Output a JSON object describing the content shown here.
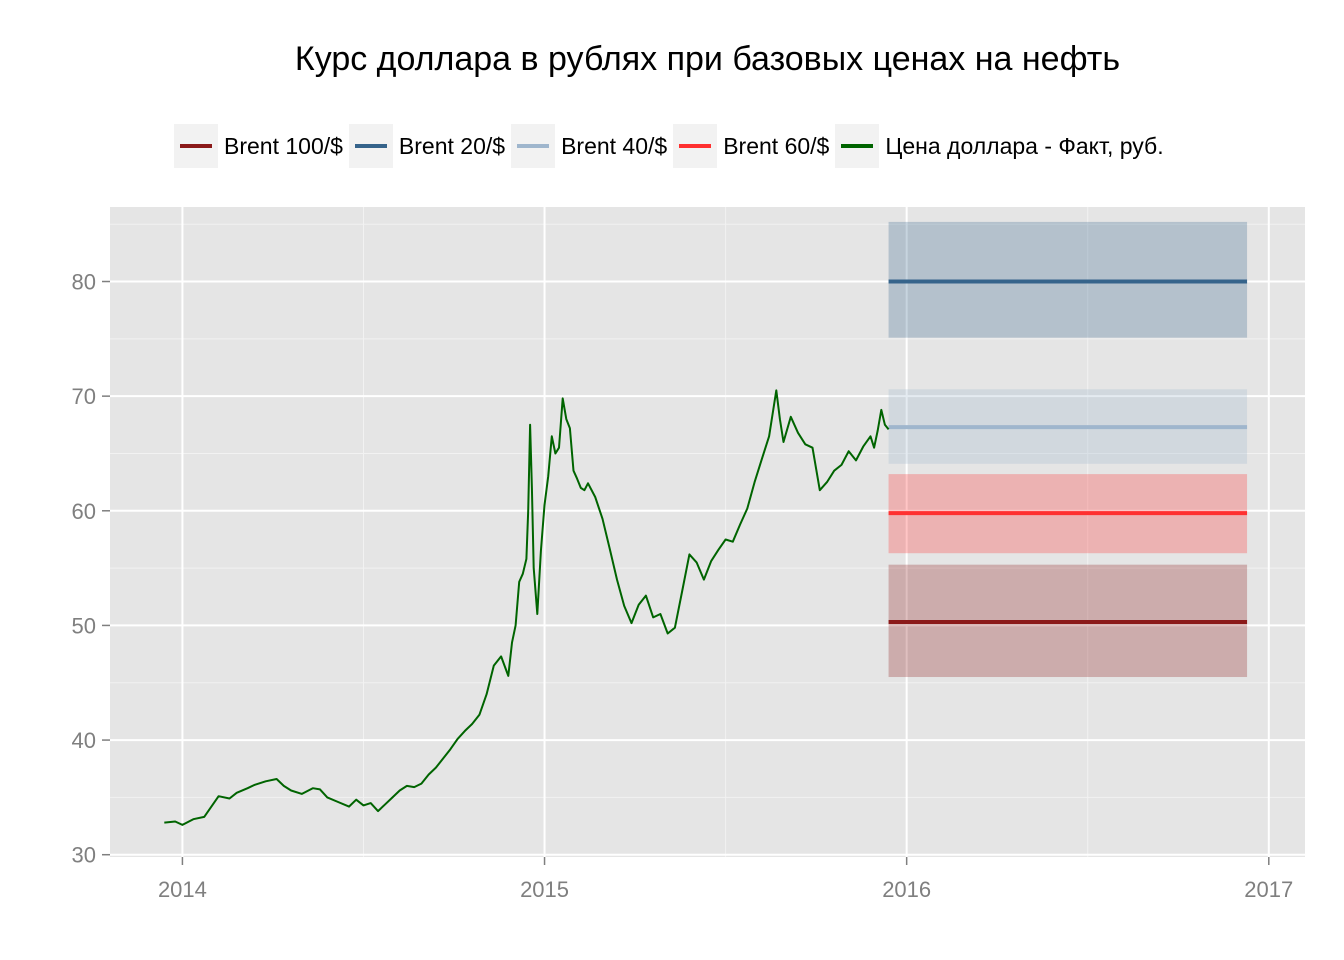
{
  "chart_data": {
    "type": "line",
    "title": "Курс доллара в рублях при базовых ценах на нефть",
    "xlabel": "",
    "ylabel": "",
    "xlim": [
      2013.8,
      2017.1
    ],
    "ylim": [
      29.8,
      86.5
    ],
    "x_ticks": [
      2014,
      2015,
      2016,
      2017
    ],
    "y_ticks": [
      30,
      40,
      50,
      60,
      70,
      80
    ],
    "grid": true,
    "legend_position": "top",
    "colors": {
      "panel_background": "#e5e5e5",
      "grid_major": "#ffffff",
      "grid_minor": "#f2f2f2",
      "tick_text": "#7f7f7f"
    },
    "series": [
      {
        "name": "Brent 100/$",
        "color": "#8b1a1a",
        "band_opacity": 0.28,
        "x": [
          2015.95,
          2016.94
        ],
        "y": [
          50.3,
          50.3
        ],
        "lower": 45.5,
        "upper": 55.3
      },
      {
        "name": "Brent 20/$",
        "color": "#36648b",
        "band_opacity": 0.28,
        "x": [
          2015.95,
          2016.94
        ],
        "y": [
          80.0,
          80.0
        ],
        "lower": 75.1,
        "upper": 85.2
      },
      {
        "name": "Brent 40/$",
        "color": "#9fb6cd",
        "band_opacity": 0.28,
        "x": [
          2015.95,
          2016.94
        ],
        "y": [
          67.3,
          67.3
        ],
        "lower": 64.1,
        "upper": 70.6
      },
      {
        "name": "Brent 60/$",
        "color": "#ff3030",
        "band_opacity": 0.28,
        "x": [
          2015.95,
          2016.94
        ],
        "y": [
          59.8,
          59.8
        ],
        "lower": 56.3,
        "upper": 63.2
      },
      {
        "name": "Цена доллара - Факт, руб.",
        "color": "#006400",
        "x": [
          2013.95,
          2013.98,
          2014.0,
          2014.03,
          2014.06,
          2014.08,
          2014.1,
          2014.13,
          2014.15,
          2014.18,
          2014.2,
          2014.23,
          2014.26,
          2014.28,
          2014.3,
          2014.33,
          2014.36,
          2014.38,
          2014.4,
          2014.43,
          2014.46,
          2014.48,
          2014.5,
          2014.52,
          2014.54,
          2014.56,
          2014.58,
          2014.6,
          2014.62,
          2014.64,
          2014.66,
          2014.68,
          2014.7,
          2014.72,
          2014.74,
          2014.76,
          2014.78,
          2014.8,
          2014.82,
          2014.84,
          2014.86,
          2014.88,
          2014.9,
          2014.91,
          2014.92,
          2014.93,
          2014.94,
          2014.95,
          2014.955,
          2014.96,
          2014.965,
          2014.97,
          2014.98,
          2014.99,
          2015.0,
          2015.01,
          2015.02,
          2015.03,
          2015.04,
          2015.05,
          2015.06,
          2015.07,
          2015.08,
          2015.09,
          2015.1,
          2015.11,
          2015.12,
          2015.14,
          2015.16,
          2015.18,
          2015.2,
          2015.22,
          2015.24,
          2015.26,
          2015.28,
          2015.3,
          2015.32,
          2015.34,
          2015.36,
          2015.38,
          2015.4,
          2015.42,
          2015.44,
          2015.46,
          2015.48,
          2015.5,
          2015.52,
          2015.54,
          2015.56,
          2015.58,
          2015.6,
          2015.62,
          2015.64,
          2015.65,
          2015.66,
          2015.68,
          2015.7,
          2015.72,
          2015.74,
          2015.76,
          2015.78,
          2015.8,
          2015.82,
          2015.84,
          2015.86,
          2015.88,
          2015.9,
          2015.91,
          2015.92,
          2015.93,
          2015.94,
          2015.95
        ],
        "y": [
          32.8,
          32.9,
          32.6,
          33.1,
          33.3,
          34.2,
          35.1,
          34.9,
          35.4,
          35.8,
          36.1,
          36.4,
          36.6,
          36.0,
          35.6,
          35.3,
          35.8,
          35.7,
          35.0,
          34.6,
          34.2,
          34.8,
          34.3,
          34.5,
          33.8,
          34.4,
          35.0,
          35.6,
          36.0,
          35.9,
          36.2,
          37.0,
          37.6,
          38.4,
          39.2,
          40.1,
          40.8,
          41.4,
          42.2,
          44.0,
          46.5,
          47.3,
          45.6,
          48.5,
          50.0,
          53.8,
          54.5,
          55.8,
          60.0,
          67.5,
          62.0,
          55.0,
          51.0,
          56.5,
          60.5,
          63.0,
          66.5,
          65.0,
          65.5,
          69.8,
          68.0,
          67.2,
          63.5,
          62.8,
          62.0,
          61.8,
          62.4,
          61.2,
          59.3,
          56.7,
          54.0,
          51.7,
          50.2,
          51.8,
          52.6,
          50.7,
          51.0,
          49.3,
          49.8,
          53.0,
          56.2,
          55.5,
          54.0,
          55.6,
          56.6,
          57.5,
          57.3,
          58.8,
          60.2,
          62.5,
          64.5,
          66.5,
          70.5,
          68.0,
          66.0,
          68.2,
          66.8,
          65.8,
          65.5,
          61.8,
          62.5,
          63.5,
          64.0,
          65.2,
          64.4,
          65.6,
          66.5,
          65.5,
          67.0,
          68.8,
          67.5,
          67.1
        ]
      }
    ]
  }
}
